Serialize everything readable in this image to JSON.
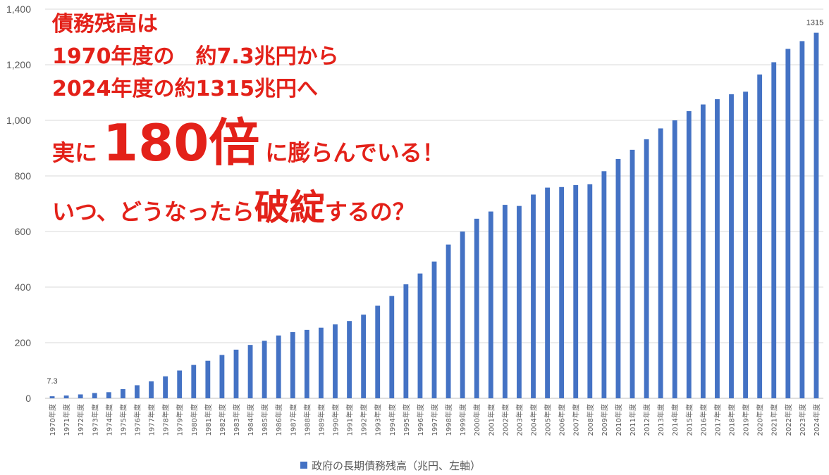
{
  "chart_data": {
    "type": "bar",
    "series": [
      {
        "name": "政府の長期債務残高（兆円、左軸）",
        "color": "#4472c4",
        "values": [
          7.3,
          10,
          14,
          19,
          22,
          33,
          47,
          61,
          79,
          100,
          120,
          135,
          156,
          175,
          192,
          207,
          226,
          238,
          246,
          254,
          266,
          278,
          301,
          333,
          368,
          410,
          449,
          492,
          553,
          600,
          646,
          672,
          696,
          692,
          733,
          758,
          760,
          767,
          770,
          817,
          861,
          894,
          932,
          971,
          1000,
          1033,
          1057,
          1076,
          1094,
          1103,
          1165,
          1209,
          1257,
          1285,
          1315
        ]
      }
    ],
    "categories": [
      "1970年度",
      "1971年度",
      "1972年度",
      "1973年度",
      "1974年度",
      "1975年度",
      "1976年度",
      "1977年度",
      "1978年度",
      "1979年度",
      "1980年度",
      "1981年度",
      "1982年度",
      "1983年度",
      "1984年度",
      "1985年度",
      "1986年度",
      "1987年度",
      "1988年度",
      "1989年度",
      "1990年度",
      "1991年度",
      "1992年度",
      "1993年度",
      "1994年度",
      "1995年度",
      "1996年度",
      "1997年度",
      "1998年度",
      "1999年度",
      "2000年度",
      "2001年度",
      "2002年度",
      "2003年度",
      "2004年度",
      "2005年度",
      "2006年度",
      "2007年度",
      "2008年度",
      "2009年度",
      "2010年度",
      "2011年度",
      "2012年度",
      "2013年度",
      "2014年度",
      "2015年度",
      "2016年度",
      "2017年度",
      "2018年度",
      "2019年度",
      "2020年度",
      "2021年度",
      "2022年度",
      "2023年度",
      "2024年度"
    ],
    "ylim": [
      0,
      1400
    ],
    "yticks": [
      "0",
      "200",
      "400",
      "600",
      "800",
      "1,000",
      "1,200",
      "1,400"
    ],
    "data_labels": {
      "first": "7.3",
      "last": "1315"
    },
    "grid": true,
    "legend": "bottom"
  },
  "annotation": {
    "line1": "債務残高は",
    "line2": "1970年度の　約7.3兆円から",
    "line3": "2024年度の約1315兆円へ",
    "line4a": "実に",
    "line4b": "180倍",
    "line4c": "に膨らんでいる！",
    "line5a": "いつ、どうなったら",
    "line5b": "破綻",
    "line5c": "するの？",
    "color": "#e32119"
  }
}
